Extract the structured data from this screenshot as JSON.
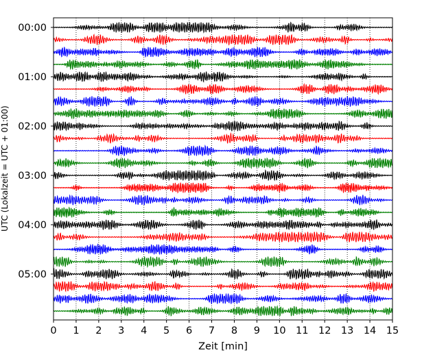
{
  "chart_data": {
    "type": "line",
    "title": "",
    "xlabel": "Zeit  [min]",
    "ylabel": "UTC (Lokalzeit = UTC + 01:00)",
    "xlim": [
      0,
      15
    ],
    "x_ticks": [
      0,
      1,
      2,
      3,
      4,
      5,
      6,
      7,
      8,
      9,
      10,
      11,
      12,
      13,
      14,
      15
    ],
    "y_ticks": [
      "00:00",
      "01:00",
      "02:00",
      "03:00",
      "04:00",
      "05:00"
    ],
    "trace_interval_minutes": 15,
    "trace_count": 24,
    "trace_colors": [
      "#000000",
      "#ff0000",
      "#0000ff",
      "#008000"
    ],
    "vertical_grid": "dotted",
    "legend": "none"
  }
}
